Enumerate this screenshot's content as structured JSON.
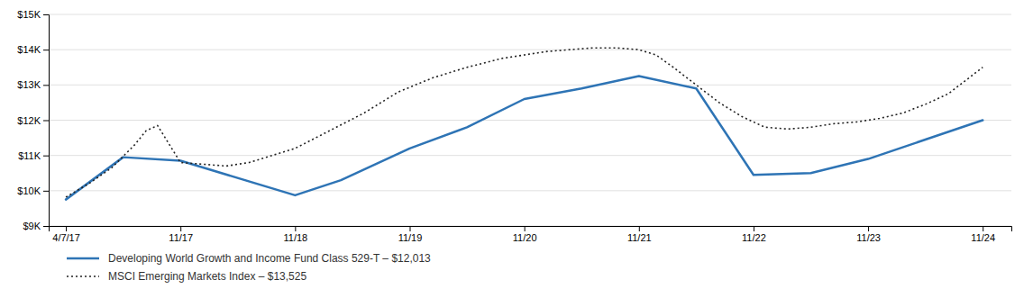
{
  "chart_data": {
    "type": "line",
    "xlim": [
      -0.15,
      8.25
    ],
    "xticks": [
      {
        "value": 0,
        "label": "4/7/17"
      },
      {
        "value": 1,
        "label": "11/17"
      },
      {
        "value": 2,
        "label": "11/18"
      },
      {
        "value": 3,
        "label": "11/19"
      },
      {
        "value": 4,
        "label": "11/20"
      },
      {
        "value": 5,
        "label": "11/21"
      },
      {
        "value": 6,
        "label": "11/22"
      },
      {
        "value": 7,
        "label": "11/23"
      },
      {
        "value": 8,
        "label": "11/24"
      }
    ],
    "ylim": [
      9000,
      15000
    ],
    "yticks": [
      {
        "value": 9000,
        "label": "$9K"
      },
      {
        "value": 10000,
        "label": "$10K"
      },
      {
        "value": 11000,
        "label": "$11K"
      },
      {
        "value": 12000,
        "label": "$12K"
      },
      {
        "value": 13000,
        "label": "$13K"
      },
      {
        "value": 14000,
        "label": "$14K"
      },
      {
        "value": 15000,
        "label": "$15K"
      }
    ],
    "grid": true,
    "legend": "bottom",
    "series": [
      {
        "name": "Developing World Growth and Income Fund Class 529-T – $12,013",
        "color": "#2e74b5",
        "line_style": "solid",
        "x": [
          0,
          0.5,
          1.0,
          2.0,
          2.4,
          3.0,
          3.5,
          4.0,
          4.5,
          5.0,
          5.5,
          6.0,
          6.5,
          7.0,
          7.5,
          8.0
        ],
        "values": [
          9750,
          10950,
          10850,
          9870,
          10300,
          11200,
          11800,
          12600,
          12900,
          13250,
          12900,
          10450,
          10500,
          10900,
          11450,
          12000
        ]
      },
      {
        "name": "MSCI Emerging Markets Index – $13,525",
        "color": "#222222",
        "line_style": "dotted",
        "x": [
          0.0,
          0.2,
          0.4,
          0.6,
          0.7,
          0.8,
          1.0,
          1.2,
          1.4,
          1.6,
          1.8,
          2.0,
          2.3,
          2.6,
          2.9,
          3.2,
          3.5,
          3.8,
          4.0,
          4.2,
          4.4,
          4.6,
          4.8,
          5.0,
          5.15,
          5.3,
          5.5,
          5.7,
          5.9,
          6.1,
          6.3,
          6.5,
          6.7,
          6.9,
          7.1,
          7.3,
          7.5,
          7.7,
          8.0
        ],
        "values": [
          9820,
          10200,
          10650,
          11300,
          11700,
          11850,
          10800,
          10750,
          10700,
          10800,
          11000,
          11200,
          11700,
          12200,
          12800,
          13200,
          13500,
          13750,
          13850,
          13950,
          14000,
          14050,
          14050,
          14000,
          13850,
          13500,
          13000,
          12500,
          12100,
          11800,
          11750,
          11800,
          11900,
          11950,
          12050,
          12200,
          12450,
          12750,
          13500
        ]
      }
    ]
  }
}
